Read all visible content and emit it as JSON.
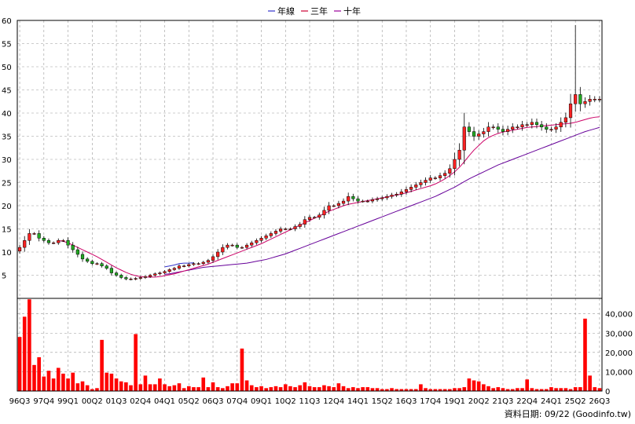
{
  "legend": [
    {
      "label": "年線",
      "color": "#3333cc"
    },
    {
      "label": "三年",
      "color": "#cc0033"
    },
    {
      "label": "十年",
      "color": "#990099"
    }
  ],
  "footer": {
    "text": "資料日期: 09/22  (Goodinfo.tw)"
  },
  "colors": {
    "up": "#ff2222",
    "down": "#22aa22",
    "volume": "#ff0000",
    "grid": "#999999",
    "ma_year": "#3333cc",
    "ma_3y": "#cc0066",
    "ma_10y": "#660099"
  },
  "chart_data": {
    "type": "candlestick",
    "x_ticks": [
      "96Q3",
      "97Q4",
      "99Q1",
      "00Q2",
      "01Q3",
      "02Q4",
      "04Q1",
      "05Q2",
      "06Q3",
      "07Q4",
      "09Q1",
      "10Q2",
      "11Q3",
      "12Q4",
      "14Q1",
      "15Q2",
      "16Q3",
      "17Q4",
      "19Q1",
      "20Q2",
      "21Q3",
      "22Q4",
      "24Q1",
      "25Q2",
      "26Q3"
    ],
    "price_axis": {
      "ylim": [
        0,
        60
      ],
      "ticks": [
        "5",
        "10",
        "15",
        "20",
        "25",
        "30",
        "35",
        "40",
        "45",
        "50",
        "55",
        "60"
      ],
      "grid": true
    },
    "volume_axis": {
      "ylim": [
        0,
        48000
      ],
      "ticks": [
        "0",
        "10,000",
        "20,000",
        "30,000",
        "40,000"
      ],
      "grid": true
    },
    "quarters": 121,
    "close": [
      11,
      12.5,
      14,
      14,
      13,
      12.5,
      12,
      12,
      12.5,
      12.5,
      11.5,
      10.5,
      9.5,
      8.5,
      8,
      7.5,
      7.5,
      7,
      6.5,
      5.5,
      5,
      4.5,
      4.2,
      4.2,
      4.3,
      4.5,
      4.7,
      5,
      5.3,
      5.5,
      5.8,
      6.2,
      6.5,
      7,
      7,
      7.3,
      7.5,
      7.5,
      7.8,
      8.2,
      9,
      10,
      11,
      11.5,
      11.5,
      11,
      11,
      11.5,
      12,
      12.5,
      13,
      13.5,
      14,
      14.5,
      15,
      15,
      15,
      15.5,
      16,
      17,
      17.5,
      17.5,
      18,
      19,
      20,
      20,
      20.5,
      21,
      22,
      21.5,
      21,
      21,
      21,
      21.3,
      21.5,
      21.7,
      22,
      22.3,
      22.5,
      23,
      23.5,
      24,
      24.5,
      25,
      25.5,
      26,
      26,
      26.5,
      27,
      28,
      30,
      32,
      37,
      36,
      35,
      35.5,
      36,
      37,
      37,
      36.5,
      36,
      36.5,
      37,
      37,
      37.5,
      37.5,
      38,
      37.5,
      37,
      36.5,
      36.5,
      37,
      38,
      39,
      42,
      44,
      42,
      42.5,
      43,
      43,
      43
    ],
    "ma_year": [
      null,
      null,
      null,
      null,
      null,
      null,
      null,
      null,
      null,
      null,
      null,
      null,
      null,
      null,
      null,
      null,
      null,
      null,
      null,
      null,
      null,
      null,
      null,
      null,
      null,
      null,
      null,
      null,
      null,
      null,
      6.8,
      7,
      7.2,
      7.5,
      7.6,
      7.6,
      7.7,
      null,
      null,
      null,
      null,
      null,
      null,
      null,
      null,
      null,
      null,
      null,
      null,
      null,
      null,
      null,
      null,
      null,
      null,
      null,
      null,
      null,
      null,
      null,
      null,
      null,
      null,
      null,
      null,
      null,
      null,
      null,
      null,
      null,
      null,
      null,
      null,
      null,
      null,
      null,
      null,
      null,
      null,
      null,
      null,
      null,
      null,
      null,
      null,
      null,
      null,
      null,
      null,
      null,
      null,
      null,
      null,
      null,
      null,
      null,
      null,
      null,
      null,
      null,
      null,
      null,
      null,
      null,
      null,
      null,
      null,
      null,
      null,
      null,
      null,
      null,
      null,
      null,
      null,
      null,
      null,
      null,
      null,
      null,
      null
    ],
    "ma_3y": [
      null,
      null,
      null,
      null,
      null,
      null,
      null,
      null,
      12.5,
      12.3,
      12,
      11.5,
      11,
      10.5,
      10,
      9.5,
      9,
      8.4,
      7.8,
      7.2,
      6.6,
      6.1,
      5.6,
      5.2,
      4.9,
      4.7,
      4.6,
      4.6,
      4.6,
      4.7,
      4.9,
      5.1,
      5.3,
      5.6,
      5.9,
      6.2,
      6.5,
      6.8,
      7.1,
      7.4,
      7.8,
      8.2,
      8.6,
      9,
      9.4,
      9.8,
      10.2,
      10.6,
      11,
      11.4,
      11.8,
      12.3,
      12.8,
      13.3,
      13.8,
      14.3,
      14.8,
      15.3,
      15.8,
      16.3,
      16.8,
      17.3,
      17.8,
      18.3,
      18.8,
      19.2,
      19.6,
      20,
      20.3,
      20.5,
      20.7,
      20.9,
      21.1,
      21.3,
      21.5,
      21.7,
      21.9,
      22.1,
      22.3,
      22.5,
      22.8,
      23.1,
      23.4,
      23.7,
      24,
      24.3,
      24.7,
      25.2,
      25.8,
      26.5,
      27.3,
      28.3,
      29.5,
      30.8,
      32,
      33,
      34,
      34.7,
      35.2,
      35.6,
      35.9,
      36.1,
      36.3,
      36.5,
      36.7,
      36.9,
      37,
      37.1,
      37.2,
      37.3,
      37.4,
      37.5,
      37.6,
      37.7,
      37.8,
      38,
      38.3,
      38.6,
      38.9,
      39.1,
      39.2
    ],
    "ma_10y": [
      null,
      null,
      null,
      null,
      null,
      null,
      null,
      null,
      null,
      null,
      null,
      null,
      null,
      null,
      null,
      null,
      null,
      null,
      null,
      null,
      null,
      null,
      null,
      null,
      null,
      null,
      null,
      null,
      null,
      null,
      5.2,
      5.3,
      5.5,
      5.7,
      5.9,
      6.1,
      6.3,
      6.5,
      6.7,
      6.8,
      6.9,
      7,
      7.1,
      7.2,
      7.3,
      7.4,
      7.5,
      7.6,
      7.8,
      8,
      8.2,
      8.4,
      8.7,
      9,
      9.3,
      9.6,
      10,
      10.4,
      10.8,
      11.2,
      11.6,
      12,
      12.4,
      12.8,
      13.2,
      13.6,
      14,
      14.4,
      14.8,
      15.2,
      15.6,
      16,
      16.4,
      16.8,
      17.2,
      17.6,
      18,
      18.4,
      18.8,
      19.2,
      19.6,
      20,
      20.4,
      20.8,
      21.2,
      21.6,
      22,
      22.5,
      23,
      23.5,
      24,
      24.6,
      25.2,
      25.8,
      26.3,
      26.8,
      27.3,
      27.8,
      28.3,
      28.8,
      29.2,
      29.6,
      30,
      30.4,
      30.8,
      31.2,
      31.6,
      32,
      32.4,
      32.8,
      33.2,
      33.6,
      34,
      34.4,
      34.8,
      35.2,
      35.6,
      36,
      36.3,
      36.6,
      36.9
    ],
    "volume": [
      28000,
      38500,
      47500,
      13500,
      17500,
      7500,
      10500,
      6500,
      12000,
      9000,
      6500,
      9500,
      4000,
      5000,
      3000,
      1000,
      1500,
      26500,
      9500,
      9000,
      6500,
      5000,
      4500,
      3000,
      29500,
      3500,
      8000,
      3500,
      3500,
      6500,
      3500,
      2500,
      3000,
      4000,
      1500,
      2500,
      2000,
      2000,
      7000,
      2000,
      4500,
      2000,
      1500,
      2500,
      4000,
      4000,
      22000,
      5500,
      3000,
      2000,
      2500,
      1500,
      2000,
      2500,
      2000,
      3500,
      2500,
      2000,
      3000,
      4500,
      2500,
      2000,
      2000,
      3000,
      2500,
      2000,
      4000,
      2500,
      1500,
      2000,
      1500,
      2000,
      2000,
      1500,
      1500,
      1000,
      1000,
      1500,
      1000,
      1000,
      1000,
      1000,
      1000,
      3500,
      1500,
      1000,
      1000,
      1000,
      1000,
      1000,
      1500,
      1500,
      2000,
      6500,
      5500,
      5000,
      3500,
      2500,
      1500,
      2000,
      1500,
      1000,
      1000,
      1500,
      1500,
      6000,
      1500,
      1000,
      1000,
      1000,
      2000,
      1500,
      1500,
      1500,
      1000,
      2000,
      2000,
      37500,
      8000,
      2000,
      1500
    ]
  }
}
